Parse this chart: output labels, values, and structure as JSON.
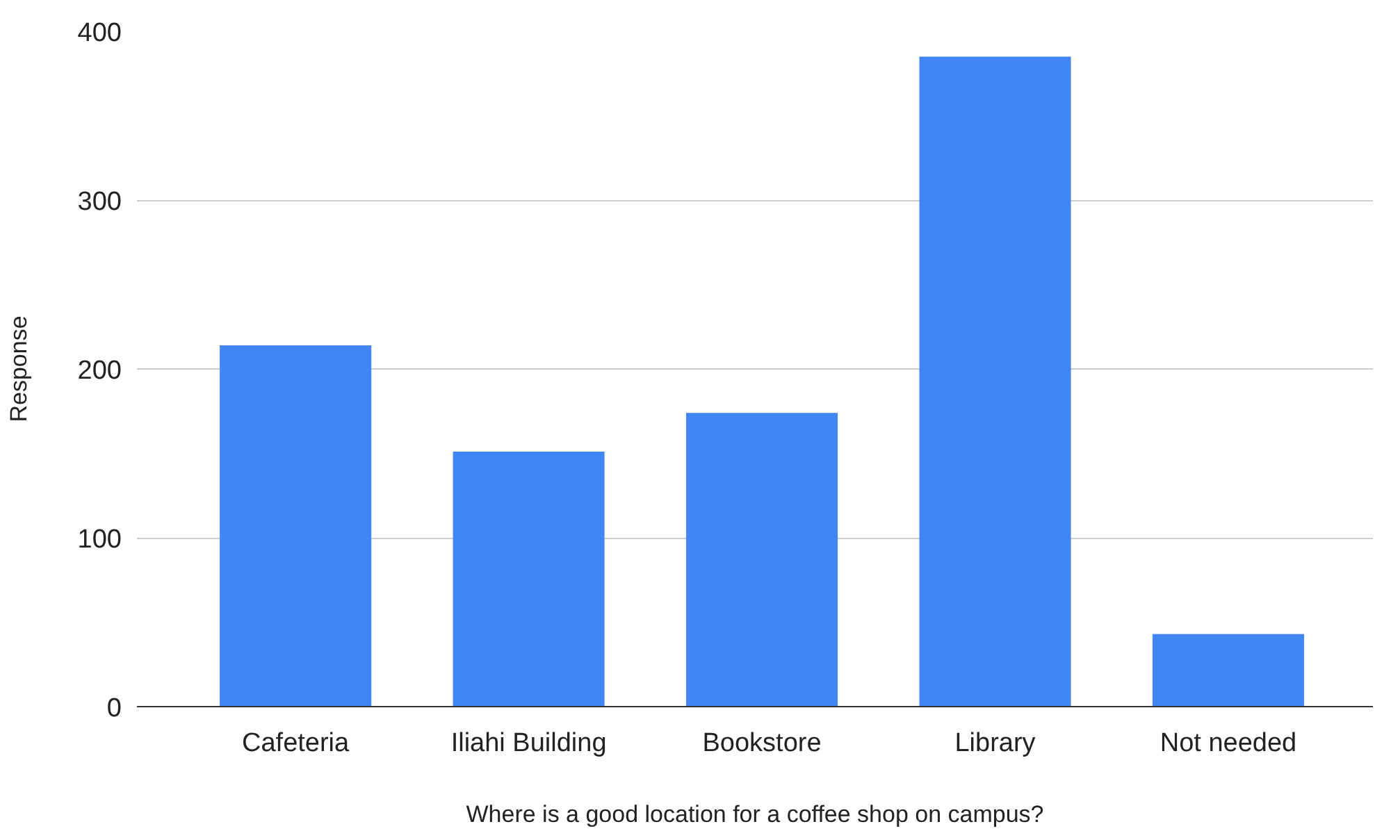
{
  "chart_data": {
    "type": "bar",
    "xlabel": "Where is a good location for a coffee shop on campus?",
    "ylabel": "Response",
    "categories": [
      "Cafeteria",
      "Iliahi Building",
      "Bookstore",
      "Library",
      "Not needed"
    ],
    "values": [
      214,
      151,
      174,
      385,
      43
    ],
    "color": "#4285f4",
    "ylim": [
      0,
      400
    ],
    "yticks": [
      0,
      100,
      200,
      300,
      400
    ],
    "grid": "y"
  }
}
